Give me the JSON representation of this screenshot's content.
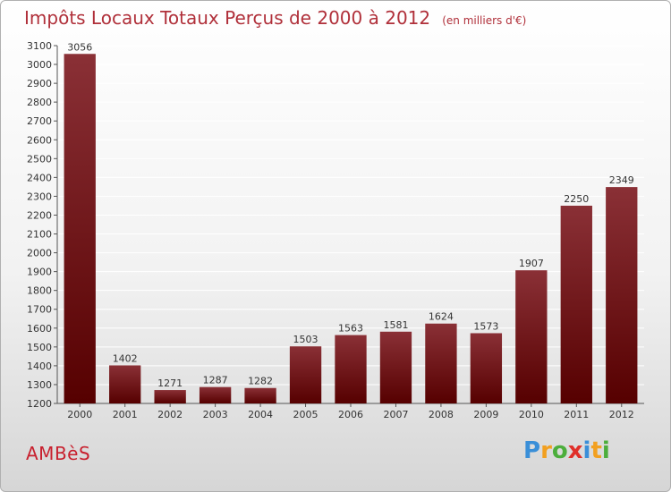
{
  "title": "Impôts Locaux Totaux Perçus de 2000 à 2012",
  "unit": "(en milliers d'€)",
  "commune": "AMBèS",
  "logo": {
    "letters": [
      "P",
      "r",
      "o",
      "x",
      "i",
      "t",
      "i"
    ],
    "colors": [
      "#3a8fd8",
      "#f2a020",
      "#4cae3c",
      "#e0302a",
      "#3a8fd8",
      "#f2a020",
      "#4cae3c"
    ]
  },
  "colors": {
    "bar_top": "#8a3036",
    "bar_bottom": "#560000",
    "title": "#b0303a",
    "grid": "#ffffff"
  },
  "chart_data": {
    "type": "bar",
    "categories": [
      "2000",
      "2001",
      "2002",
      "2003",
      "2004",
      "2005",
      "2006",
      "2007",
      "2008",
      "2009",
      "2010",
      "2011",
      "2012"
    ],
    "values": [
      3056,
      1402,
      1271,
      1287,
      1282,
      1503,
      1563,
      1581,
      1624,
      1573,
      1907,
      2250,
      2349
    ],
    "ylim": [
      1200,
      3100
    ],
    "yticks": [
      1200,
      1300,
      1400,
      1500,
      1600,
      1700,
      1800,
      1900,
      2000,
      2100,
      2200,
      2300,
      2400,
      2500,
      2600,
      2700,
      2800,
      2900,
      3000,
      3100
    ],
    "grid": true
  }
}
